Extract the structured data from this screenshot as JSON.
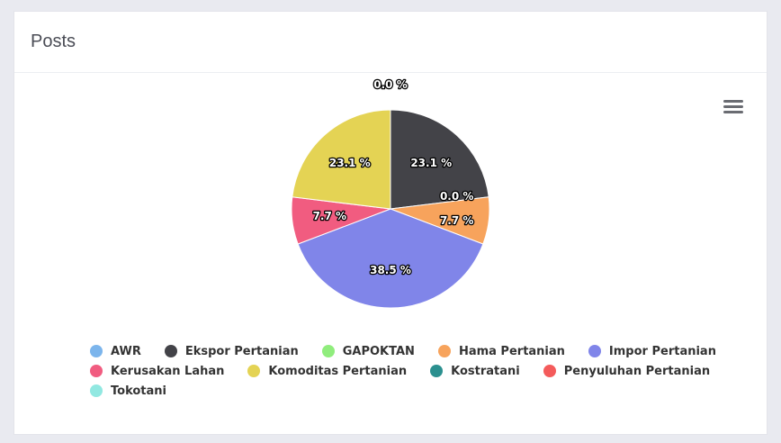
{
  "card": {
    "title": "Posts"
  },
  "menu": {
    "icon": "hamburger-menu-icon"
  },
  "chart_data": {
    "type": "pie",
    "title": "",
    "series": [
      {
        "values": [
          {
            "name": "AWR",
            "value": 0,
            "label": "",
            "color": "#7cb5ec"
          },
          {
            "name": "Ekspor Pertanian",
            "value": 23.1,
            "label": "23.1 %",
            "color": "#434348"
          },
          {
            "name": "GAPOKTAN",
            "value": 0,
            "label": "0.0 %",
            "color": "#90ed7d"
          },
          {
            "name": "Hama Pertanian",
            "value": 7.7,
            "label": "7.7 %",
            "color": "#f7a35c"
          },
          {
            "name": "Impor Pertanian",
            "value": 38.5,
            "label": "38.5 %",
            "color": "#8085e9"
          },
          {
            "name": "Kerusakan Lahan",
            "value": 7.7,
            "label": "7.7 %",
            "color": "#f15c80"
          },
          {
            "name": "Komoditas Pertanian",
            "value": 23.1,
            "label": "23.1 %",
            "color": "#e4d354"
          },
          {
            "name": "Kostratani",
            "value": 0,
            "label": "0.0 %",
            "color": "#2b908f"
          },
          {
            "name": "Penyuluhan Pertanian",
            "value": 0,
            "label": "",
            "color": "#f45b5b"
          },
          {
            "name": "Tokotani",
            "value": 0,
            "label": "",
            "color": "#91e8e1"
          }
        ]
      }
    ],
    "legend_placement": "bottom",
    "legend_rows": [
      [
        "AWR",
        "Ekspor Pertanian",
        "GAPOKTAN",
        "Hama Pertanian",
        "Impor Pertanian"
      ],
      [
        "Kerusakan Lahan",
        "Komoditas Pertanian",
        "Kostratani",
        "Penyuluhan Pertanian"
      ],
      [
        "Tokotani"
      ]
    ]
  }
}
